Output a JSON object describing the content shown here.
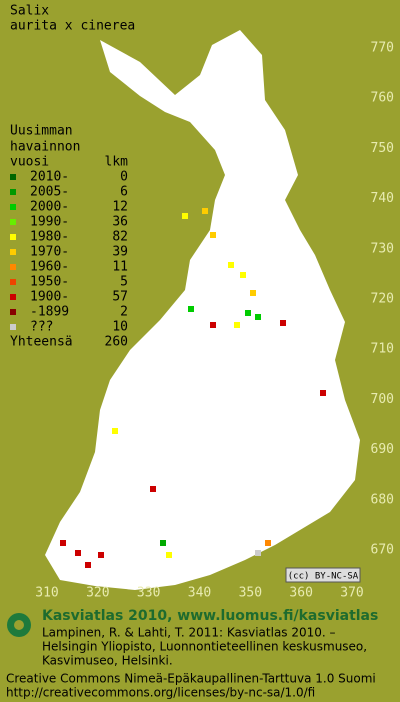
{
  "title": [
    "Salix",
    "aurita x cinerea"
  ],
  "legend": {
    "header": [
      "Uusimman",
      "havainnon",
      "vuosi"
    ],
    "count_header": "lkm",
    "rows": [
      {
        "label": "2010-",
        "count": 0,
        "color": "#006600"
      },
      {
        "label": "2005-",
        "count": 6,
        "color": "#009900"
      },
      {
        "label": "2000-",
        "count": 12,
        "color": "#00cc00"
      },
      {
        "label": "1990-",
        "count": 36,
        "color": "#66ee00"
      },
      {
        "label": "1980-",
        "count": 82,
        "color": "#ffff00"
      },
      {
        "label": "1970-",
        "count": 39,
        "color": "#ffcc00"
      },
      {
        "label": "1960-",
        "count": 11,
        "color": "#ff8800"
      },
      {
        "label": "1950-",
        "count": 5,
        "color": "#ee4400"
      },
      {
        "label": "1900-",
        "count": 57,
        "color": "#cc0000"
      },
      {
        "label": "-1899",
        "count": 2,
        "color": "#880000"
      },
      {
        "label": "???",
        "count": 10,
        "color": "#cccccc"
      }
    ],
    "total_label": "Yhteensä",
    "total": 260
  },
  "grid": {
    "northing": [
      770,
      760,
      750,
      740,
      730,
      720,
      710,
      700,
      690,
      680,
      670
    ],
    "easting": [
      310,
      320,
      330,
      340,
      350,
      360,
      370
    ]
  },
  "license_badge": "(cc) BY-NC-SA",
  "footer": {
    "heading": "Kasviatlas 2010, www.luomus.fi/kasviatlas",
    "citation": [
      "Lampinen, R. & Lahti, T. 2011: Kasviatlas 2010. –",
      "Helsingin Yliopisto, Luonnontieteellinen keskusmuseo,",
      "Kasvimuseo, Helsinki."
    ],
    "license": [
      "Creative Commons Nimeä-Epäkaupallinen-Tarttuva 1.0 Suomi",
      "http://creativecommons.org/licenses/by-nc-sa/1.0/fi"
    ]
  }
}
